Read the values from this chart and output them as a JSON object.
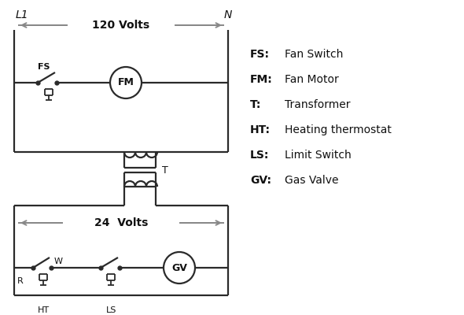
{
  "bg_color": "#ffffff",
  "line_color": "#2a2a2a",
  "arrow_color": "#888888",
  "text_color": "#111111",
  "legend": [
    [
      "FS:",
      "Fan Switch"
    ],
    [
      "FM:",
      "Fan Motor"
    ],
    [
      "T:",
      "Transformer"
    ],
    [
      "HT:",
      "Heating thermostat"
    ],
    [
      "LS:",
      "Limit Switch"
    ],
    [
      "GV:",
      "Gas Valve"
    ]
  ],
  "volts_120_label": "120 Volts",
  "volts_24_label": "24  Volts",
  "L1_label": "L1",
  "N_label": "N"
}
